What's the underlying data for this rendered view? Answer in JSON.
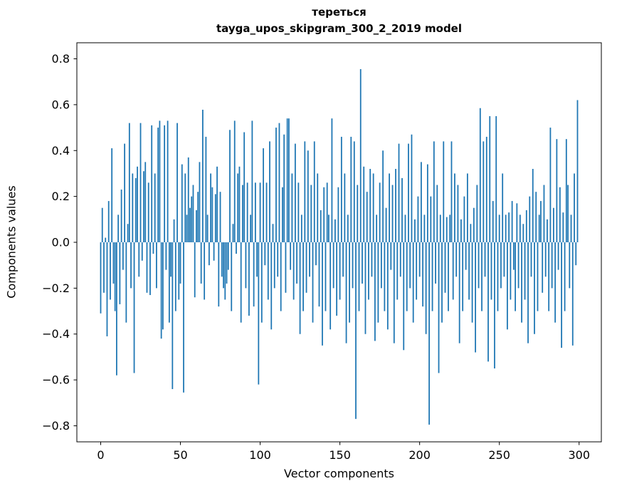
{
  "chart_data": {
    "type": "bar",
    "title_line1": "тереться",
    "title_line2": "tayga_upos_skipgram_300_2_2019 model",
    "xlabel": "Vector components",
    "ylabel": "Components values",
    "bar_color": "#1f77b4",
    "axis_color": "#000000",
    "xlim": [
      -14.95,
      313.95
    ],
    "ylim": [
      -0.87,
      0.87
    ],
    "x_ticks": [
      0,
      50,
      100,
      150,
      200,
      250,
      300
    ],
    "y_ticks": [
      -0.8,
      -0.6,
      -0.4,
      -0.2,
      0.0,
      0.2,
      0.4,
      0.6,
      0.8
    ],
    "legend": "none",
    "grid": false,
    "values": [
      -0.31,
      0.15,
      -0.22,
      0.02,
      -0.41,
      0.18,
      -0.25,
      0.41,
      -0.18,
      -0.3,
      -0.58,
      0.12,
      -0.27,
      0.23,
      -0.12,
      0.43,
      -0.35,
      0.08,
      0.52,
      -0.2,
      0.3,
      -0.57,
      0.28,
      0.33,
      -0.15,
      0.52,
      -0.08,
      0.31,
      0.35,
      -0.22,
      0.26,
      -0.23,
      0.51,
      -0.05,
      0.3,
      -0.2,
      0.5,
      0.53,
      -0.42,
      -0.38,
      0.51,
      -0.12,
      0.53,
      -0.35,
      -0.15,
      -0.64,
      0.1,
      -0.3,
      0.52,
      -0.25,
      -0.18,
      0.34,
      -0.655,
      0.3,
      0.12,
      0.37,
      0.15,
      0.2,
      0.25,
      -0.24,
      0.14,
      0.22,
      0.35,
      -0.18,
      0.578,
      -0.25,
      0.46,
      0.12,
      -0.1,
      0.3,
      0.24,
      -0.08,
      0.21,
      0.33,
      -0.28,
      0.22,
      -0.15,
      -0.2,
      -0.25,
      -0.18,
      -0.12,
      0.49,
      -0.3,
      0.08,
      0.53,
      -0.05,
      0.3,
      0.33,
      -0.35,
      0.25,
      0.48,
      -0.2,
      0.26,
      -0.32,
      0.12,
      0.53,
      -0.28,
      0.26,
      -0.15,
      -0.62,
      0.26,
      -0.35,
      0.41,
      -0.1,
      0.26,
      -0.25,
      0.44,
      -0.38,
      0.08,
      -0.2,
      0.5,
      -0.15,
      0.52,
      -0.3,
      0.24,
      0.47,
      -0.22,
      0.54,
      0.54,
      -0.12,
      0.3,
      -0.25,
      0.43,
      -0.18,
      0.26,
      -0.4,
      0.12,
      -0.3,
      0.44,
      -0.22,
      0.4,
      -0.15,
      0.25,
      -0.35,
      0.44,
      -0.1,
      0.3,
      -0.28,
      0.14,
      -0.45,
      0.24,
      -0.3,
      0.26,
      0.12,
      -0.38,
      0.54,
      -0.2,
      0.1,
      -0.32,
      0.24,
      -0.25,
      0.46,
      -0.15,
      0.3,
      -0.44,
      0.12,
      -0.35,
      0.46,
      -0.2,
      0.44,
      -0.77,
      0.25,
      -0.3,
      0.755,
      -0.18,
      0.33,
      -0.4,
      0.22,
      -0.25,
      0.32,
      -0.15,
      0.3,
      -0.43,
      0.12,
      -0.35,
      0.26,
      -0.2,
      0.4,
      -0.3,
      0.15,
      -0.38,
      0.3,
      -0.12,
      0.25,
      -0.44,
      0.32,
      -0.25,
      0.43,
      -0.15,
      0.28,
      -0.47,
      0.12,
      -0.3,
      0.43,
      -0.2,
      0.47,
      -0.35,
      0.1,
      -0.25,
      0.2,
      -0.15,
      0.35,
      -0.28,
      0.12,
      -0.4,
      0.34,
      -0.795,
      0.2,
      -0.3,
      0.44,
      -0.18,
      0.25,
      -0.57,
      0.12,
      -0.35,
      0.44,
      -0.22,
      0.11,
      -0.3,
      0.12,
      0.44,
      -0.25,
      0.3,
      -0.15,
      0.25,
      -0.44,
      0.1,
      -0.3,
      0.2,
      -0.12,
      0.3,
      -0.25,
      0.08,
      -0.35,
      0.15,
      -0.48,
      0.25,
      -0.2,
      0.585,
      -0.3,
      0.44,
      -0.15,
      0.46,
      -0.52,
      0.55,
      -0.25,
      0.18,
      -0.55,
      0.55,
      -0.3,
      0.12,
      -0.2,
      0.3,
      -0.15,
      0.12,
      -0.38,
      0.13,
      -0.25,
      0.18,
      -0.12,
      -0.3,
      0.17,
      -0.2,
      0.12,
      -0.35,
      0.08,
      -0.25,
      0.14,
      -0.44,
      0.2,
      -0.15,
      0.32,
      -0.4,
      0.22,
      -0.3,
      0.12,
      0.18,
      -0.22,
      0.25,
      -0.15,
      0.1,
      -0.3,
      0.5,
      -0.2,
      0.15,
      -0.35,
      0.45,
      -0.12,
      0.24,
      -0.46,
      0.13,
      -0.3,
      0.45,
      0.25,
      -0.2,
      0.12,
      -0.45,
      0.3,
      -0.1,
      0.62
    ]
  }
}
